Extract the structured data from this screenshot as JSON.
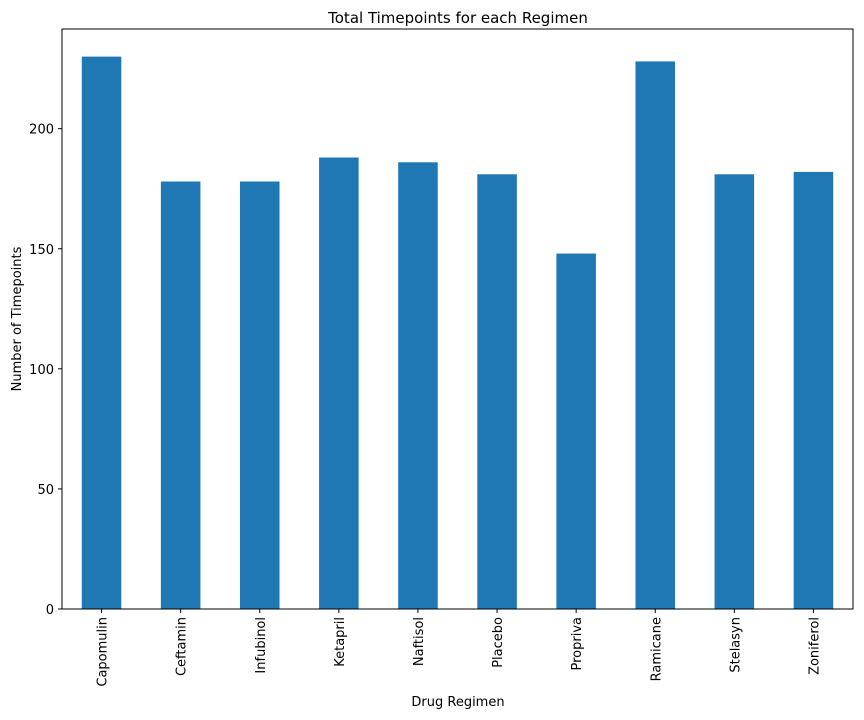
{
  "chart_data": {
    "type": "bar",
    "title": "Total Timepoints for each Regimen",
    "xlabel": "Drug Regimen",
    "ylabel": "Number of Timepoints",
    "categories": [
      "Capomulin",
      "Ceftamin",
      "Infubinol",
      "Ketapril",
      "Naftisol",
      "Placebo",
      "Propriva",
      "Ramicane",
      "Stelasyn",
      "Zoniferol"
    ],
    "values": [
      230,
      178,
      178,
      188,
      186,
      181,
      148,
      228,
      181,
      182
    ],
    "yticks": [
      0,
      50,
      100,
      150,
      200
    ],
    "ylim": [
      0,
      241.5
    ],
    "grid": false,
    "legend": "none",
    "bar_color": "#1f77b4"
  }
}
